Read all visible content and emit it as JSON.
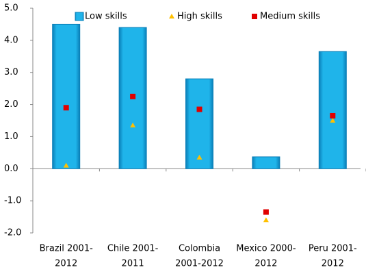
{
  "chart_data": {
    "type": "bar",
    "categories": [
      [
        "Brazil 2001-",
        "2012"
      ],
      [
        "Chile 2001-",
        "2011"
      ],
      [
        "Colombia",
        "2001-2012"
      ],
      [
        "Mexico 2000-",
        "2012"
      ],
      [
        "Peru 2001-",
        "2012"
      ]
    ],
    "series": [
      {
        "name": "Low skills",
        "color": "#1fb4ea",
        "marker": "bar",
        "values": [
          4.5,
          4.4,
          2.8,
          0.37,
          3.65
        ]
      },
      {
        "name": "High skills",
        "color": "#ffc000",
        "marker": "triangle",
        "values": [
          0.1,
          1.35,
          0.35,
          -1.6,
          1.5
        ]
      },
      {
        "name": "Medium skills",
        "color": "#e00000",
        "marker": "square",
        "values": [
          1.9,
          2.25,
          1.85,
          -1.35,
          1.65
        ]
      }
    ],
    "ylim": [
      -2.0,
      5.0
    ],
    "yticks": [
      {
        "value": 5,
        "label": "5.0"
      },
      {
        "value": 4,
        "label": "4.0"
      },
      {
        "value": 3,
        "label": "3.0"
      },
      {
        "value": 2,
        "label": "2.0"
      },
      {
        "value": 1,
        "label": "1.0"
      },
      {
        "value": 0,
        "label": "0.0"
      },
      {
        "value": -1,
        "label": "-1.0"
      },
      {
        "value": -2,
        "label": "-2.0"
      }
    ],
    "grid": false,
    "legend": "top"
  }
}
